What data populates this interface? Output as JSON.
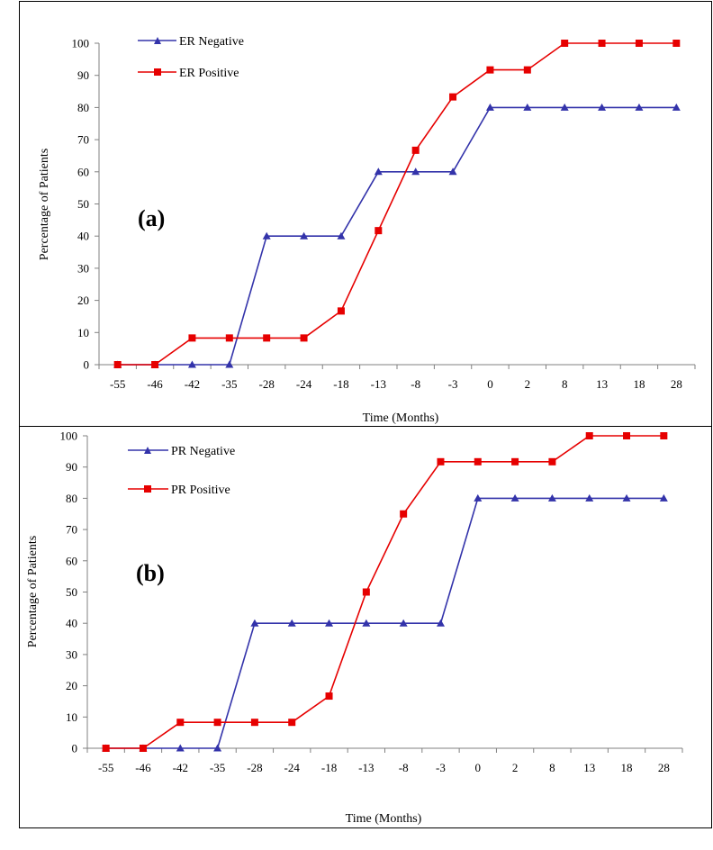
{
  "chart_data": [
    {
      "type": "line",
      "panel_label": "(a)",
      "xlabel": "Time (Months)",
      "ylabel": "Percentage  of Patients",
      "categories": [
        "-55",
        "-46",
        "-42",
        "-35",
        "-28",
        "-24",
        "-18",
        "-13",
        "-8",
        "-3",
        "0",
        "2",
        "8",
        "13",
        "18",
        "28"
      ],
      "ylim": [
        0,
        100
      ],
      "yticks": [
        0,
        10,
        20,
        30,
        40,
        50,
        60,
        70,
        80,
        90,
        100
      ],
      "legend_placement": "top-left",
      "grid": false,
      "series": [
        {
          "name": "ER Negative",
          "color": "#3333aa",
          "marker": "triangle",
          "values": [
            0,
            0,
            0,
            0,
            40,
            40,
            40,
            60,
            60,
            60,
            80,
            80,
            80,
            80,
            80,
            80
          ]
        },
        {
          "name": "ER Positive",
          "color": "#e60000",
          "marker": "square",
          "values": [
            0,
            0,
            8.3,
            8.3,
            8.3,
            8.3,
            16.7,
            41.7,
            66.7,
            83.3,
            91.7,
            91.7,
            100,
            100,
            100,
            100
          ]
        }
      ]
    },
    {
      "type": "line",
      "panel_label": "(b)",
      "xlabel": "Time (Months)",
      "ylabel": "Percentage  of Patients",
      "categories": [
        "-55",
        "-46",
        "-42",
        "-35",
        "-28",
        "-24",
        "-18",
        "-13",
        "-8",
        "-3",
        "0",
        "2",
        "8",
        "13",
        "18",
        "28"
      ],
      "ylim": [
        0,
        100
      ],
      "yticks": [
        0,
        10,
        20,
        30,
        40,
        50,
        60,
        70,
        80,
        90,
        100
      ],
      "legend_placement": "top-left",
      "grid": false,
      "series": [
        {
          "name": "PR Negative",
          "color": "#3333aa",
          "marker": "triangle",
          "values": [
            0,
            0,
            0,
            0,
            40,
            40,
            40,
            40,
            40,
            40,
            80,
            80,
            80,
            80,
            80,
            80
          ]
        },
        {
          "name": "PR Positive",
          "color": "#e60000",
          "marker": "square",
          "values": [
            0,
            0,
            8.3,
            8.3,
            8.3,
            8.3,
            16.7,
            50,
            75,
            91.7,
            91.7,
            91.7,
            91.7,
            100,
            100,
            100
          ]
        }
      ]
    }
  ]
}
